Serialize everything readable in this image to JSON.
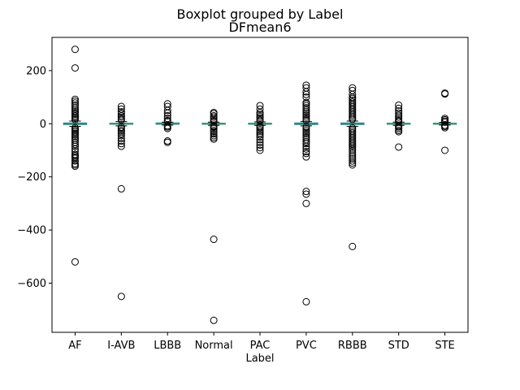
{
  "chart_data": {
    "type": "box",
    "suptitle": "Boxplot grouped by Label",
    "title": "DFmean6",
    "xlabel": "Label",
    "ylabel": "",
    "ylim": [
      -785,
      325
    ],
    "yticks": [
      200,
      0,
      -200,
      -400,
      -600
    ],
    "ytick_labels": [
      "200",
      "0",
      "−200",
      "−400",
      "−600"
    ],
    "grid": false,
    "categories": [
      "AF",
      "I-AVB",
      "LBBB",
      "Normal",
      "PAC",
      "PVC",
      "RBBB",
      "STD",
      "STE"
    ],
    "boxes": [
      {
        "label": "AF",
        "q1": -3,
        "median": 0,
        "q3": 3,
        "whisker_low": -10,
        "whisker_high": 10,
        "fliers": [
          280,
          210,
          92,
          85,
          78,
          70,
          62,
          55,
          48,
          42,
          36,
          30,
          25,
          20,
          15,
          -15,
          -20,
          -25,
          -30,
          -36,
          -42,
          -48,
          -55,
          -62,
          -70,
          -78,
          -85,
          -95,
          -105,
          -115,
          -120,
          -125,
          -130,
          -140,
          -150,
          -155,
          -160,
          -520
        ]
      },
      {
        "label": "I-AVB",
        "q1": -2,
        "median": 0,
        "q3": 2,
        "whisker_low": -8,
        "whisker_high": 8,
        "fliers": [
          65,
          55,
          45,
          38,
          30,
          25,
          18,
          13,
          -13,
          -18,
          -25,
          -30,
          -38,
          -45,
          -55,
          -65,
          -75,
          -85,
          -245,
          -650
        ]
      },
      {
        "label": "LBBB",
        "q1": -2,
        "median": 1,
        "q3": 3,
        "whisker_low": -5,
        "whisker_high": 6,
        "fliers": [
          75,
          65,
          50,
          40,
          30,
          20,
          12,
          8,
          -8,
          -12,
          -18,
          -65,
          -70
        ]
      },
      {
        "label": "Normal",
        "q1": -2,
        "median": 0,
        "q3": 2,
        "whisker_low": -6,
        "whisker_high": 6,
        "fliers": [
          42,
          38,
          30,
          25,
          18,
          12,
          9,
          -9,
          -12,
          -18,
          -25,
          -30,
          -38,
          -45,
          -52,
          -58,
          -435,
          -740
        ]
      },
      {
        "label": "PAC",
        "q1": -2,
        "median": 0,
        "q3": 2,
        "whisker_low": -6,
        "whisker_high": 7,
        "fliers": [
          68,
          55,
          42,
          35,
          28,
          22,
          15,
          10,
          -10,
          -15,
          -22,
          -28,
          -35,
          -42,
          -50,
          -60,
          -70,
          -80,
          -90,
          -100
        ]
      },
      {
        "label": "PVC",
        "q1": -3,
        "median": 0,
        "q3": 3,
        "whisker_low": -8,
        "whisker_high": 8,
        "fliers": [
          145,
          135,
          120,
          110,
          100,
          80,
          75,
          68,
          60,
          52,
          45,
          38,
          32,
          25,
          18,
          12,
          -12,
          -18,
          -25,
          -32,
          -38,
          -45,
          -52,
          -60,
          -68,
          -75,
          -85,
          -95,
          -105,
          -112,
          -125,
          -255,
          -265,
          -300,
          -670
        ]
      },
      {
        "label": "RBBB",
        "q1": -3,
        "median": 0,
        "q3": 3,
        "whisker_low": -10,
        "whisker_high": 10,
        "fliers": [
          135,
          125,
          110,
          100,
          95,
          88,
          82,
          76,
          70,
          64,
          58,
          52,
          46,
          40,
          34,
          28,
          22,
          16,
          -16,
          -22,
          -28,
          -34,
          -40,
          -46,
          -52,
          -58,
          -64,
          -70,
          -76,
          -82,
          -88,
          -95,
          -102,
          -110,
          -118,
          -125,
          -132,
          -140,
          -148,
          -155,
          -462
        ]
      },
      {
        "label": "STD",
        "q1": -2,
        "median": 0,
        "q3": 2,
        "whisker_low": -6,
        "whisker_high": 6,
        "fliers": [
          70,
          58,
          48,
          40,
          32,
          25,
          18,
          12,
          8,
          -8,
          -12,
          -18,
          -25,
          -30,
          -88
        ]
      },
      {
        "label": "STE",
        "q1": -2,
        "median": 0,
        "q3": 2,
        "whisker_low": -5,
        "whisker_high": 5,
        "fliers": [
          115,
          112,
          20,
          15,
          10,
          6,
          -6,
          -10,
          -15,
          -100
        ]
      }
    ],
    "colors": {
      "box": "#1f77b4",
      "median": "#2ca02c",
      "flier": "#000000"
    }
  }
}
